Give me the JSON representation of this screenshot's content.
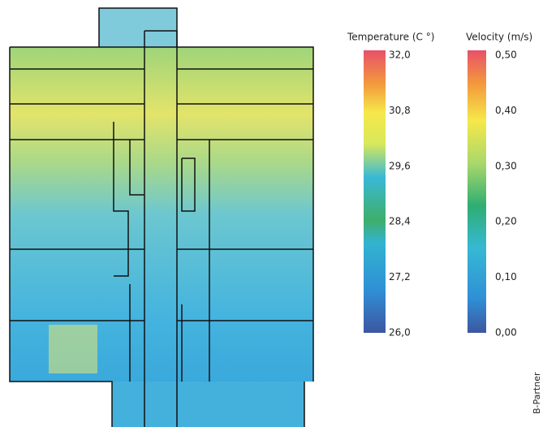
{
  "legends": [
    {
      "title": "Temperature (C °)",
      "ticks": [
        "32,0",
        "30,8",
        "29,6",
        "28,4",
        "27,2",
        "26,0"
      ]
    },
    {
      "title": "Velocity (m/s)",
      "ticks": [
        "0,50",
        "0,40",
        "0,30",
        "0,20",
        "0,10",
        "0,00"
      ]
    }
  ],
  "credit": "B-Partner"
}
